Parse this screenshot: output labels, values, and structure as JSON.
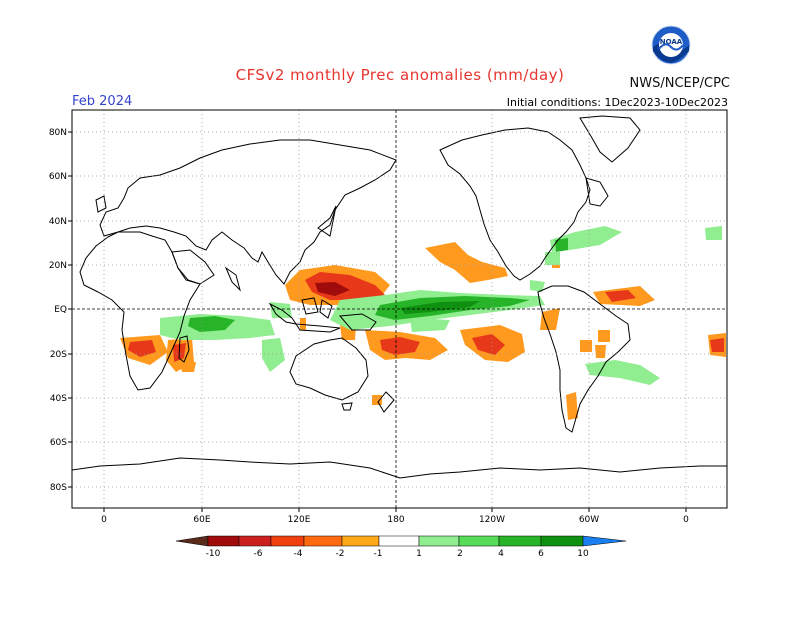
{
  "header": {
    "title": "CFSv2 monthly Prec anomalies (mm/day)",
    "month": "Feb 2024",
    "initial_conditions": "Initial conditions: 1Dec2023-10Dec2023",
    "agency": "NWS/NCEP/CPC",
    "logo_text": "NOAA"
  },
  "map": {
    "lat_labels": [
      "80N",
      "60N",
      "40N",
      "20N",
      "EQ",
      "20S",
      "40S",
      "60S",
      "80S"
    ],
    "lon_labels": [
      "0",
      "60E",
      "120E",
      "180",
      "120W",
      "60W",
      "0"
    ],
    "grid": "dotted",
    "dry_color": "#d87218",
    "wet_color": "#1aa82f"
  },
  "colorbar": {
    "labels": [
      "-10",
      "-6",
      "-4",
      "-2",
      "-1",
      "1",
      "2",
      "4",
      "6",
      "10"
    ],
    "colors": [
      "#5a2a1a",
      "#a00c0c",
      "#cc2020",
      "#f04010",
      "#ff8818",
      "#ffa818",
      "#ffffff",
      "#90ee90",
      "#56dc56",
      "#28b428",
      "#109010",
      "#1a7ef0"
    ]
  }
}
